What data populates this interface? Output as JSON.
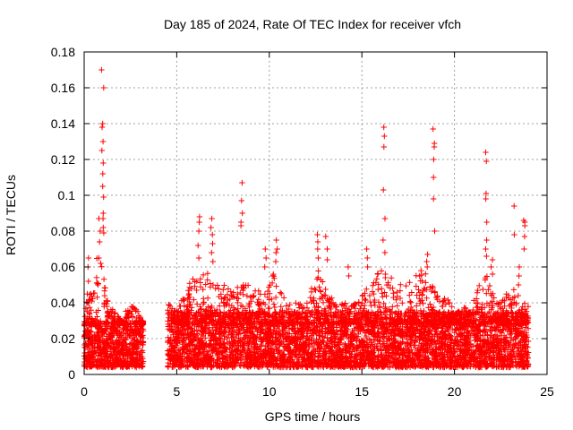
{
  "chart_data": {
    "type": "scatter",
    "title": "Day 185 of 2024, Rate Of TEC Index for receiver vfch",
    "xlabel": "GPS time / hours",
    "ylabel": "ROTI / TECUs",
    "xlim": [
      0,
      25
    ],
    "ylim": [
      0,
      0.18
    ],
    "xticks": [
      0,
      5,
      10,
      15,
      20,
      25
    ],
    "yticks": [
      0,
      0.02,
      0.04,
      0.06,
      0.08,
      0.1,
      0.12,
      0.14,
      0.16,
      0.18
    ],
    "xtick_labels": [
      "0",
      "5",
      "10",
      "15",
      "20",
      "25"
    ],
    "ytick_labels": [
      "0",
      "0.02",
      "0.04",
      "0.06",
      "0.08",
      "0.1",
      "0.12",
      "0.14",
      "0.16",
      "0.18"
    ],
    "grid": true,
    "marker": "+",
    "series_color": "#ff0000",
    "data_gap_hours": [
      3.2,
      4.5
    ],
    "baseline": {
      "segments": [
        {
          "x_start": 0.0,
          "x_end": 3.2,
          "low": 0.004,
          "high": 0.03
        },
        {
          "x_start": 4.5,
          "x_end": 24.0,
          "low": 0.004,
          "high": 0.035
        }
      ]
    },
    "envelope": [
      [
        0.0,
        0.03
      ],
      [
        0.2,
        0.06
      ],
      [
        0.5,
        0.045
      ],
      [
        0.8,
        0.08
      ],
      [
        1.0,
        0.06
      ],
      [
        1.3,
        0.04
      ],
      [
        2.0,
        0.03
      ],
      [
        2.4,
        0.04
      ],
      [
        3.0,
        0.035
      ],
      [
        3.2,
        0.03
      ],
      [
        4.5,
        0.04
      ],
      [
        5.0,
        0.035
      ],
      [
        6.0,
        0.06
      ],
      [
        6.8,
        0.06
      ],
      [
        7.3,
        0.05
      ],
      [
        8.5,
        0.05
      ],
      [
        9.5,
        0.05
      ],
      [
        10.3,
        0.06
      ],
      [
        11.0,
        0.04
      ],
      [
        12.0,
        0.04
      ],
      [
        12.6,
        0.06
      ],
      [
        13.5,
        0.04
      ],
      [
        14.5,
        0.04
      ],
      [
        15.3,
        0.05
      ],
      [
        16.2,
        0.06
      ],
      [
        17.0,
        0.05
      ],
      [
        18.5,
        0.06
      ],
      [
        19.3,
        0.05
      ],
      [
        20.0,
        0.035
      ],
      [
        21.0,
        0.04
      ],
      [
        21.7,
        0.06
      ],
      [
        22.3,
        0.04
      ],
      [
        23.3,
        0.05
      ],
      [
        24.0,
        0.04
      ]
    ],
    "spikes": [
      {
        "x": 1.0,
        "y": [
          0.17,
          0.16,
          0.14,
          0.138,
          0.13,
          0.125,
          0.118,
          0.112,
          0.105,
          0.099,
          0.09,
          0.087,
          0.082,
          0.079
        ]
      },
      {
        "x": 0.85,
        "y": [
          0.087,
          0.08,
          0.074,
          0.065
        ]
      },
      {
        "x": 0.2,
        "y": [
          0.065,
          0.06,
          0.052
        ]
      },
      {
        "x": 6.2,
        "y": [
          0.088,
          0.085,
          0.08,
          0.072,
          0.065
        ]
      },
      {
        "x": 6.9,
        "y": [
          0.087,
          0.082,
          0.078,
          0.073,
          0.068,
          0.063
        ]
      },
      {
        "x": 8.5,
        "y": [
          0.107,
          0.097,
          0.09,
          0.085,
          0.083
        ]
      },
      {
        "x": 9.8,
        "y": [
          0.07,
          0.065,
          0.06
        ]
      },
      {
        "x": 10.4,
        "y": [
          0.075,
          0.07,
          0.068,
          0.063
        ]
      },
      {
        "x": 12.6,
        "y": [
          0.078,
          0.074,
          0.07,
          0.065
        ]
      },
      {
        "x": 13.1,
        "y": [
          0.077,
          0.07,
          0.064
        ]
      },
      {
        "x": 14.3,
        "y": [
          0.06,
          0.055
        ]
      },
      {
        "x": 15.3,
        "y": [
          0.07,
          0.065,
          0.06
        ]
      },
      {
        "x": 16.2,
        "y": [
          0.138,
          0.133,
          0.127,
          0.103,
          0.087,
          0.075,
          0.068
        ]
      },
      {
        "x": 18.5,
        "y": [
          0.067,
          0.063,
          0.06
        ]
      },
      {
        "x": 18.9,
        "y": [
          0.137,
          0.129,
          0.127,
          0.12,
          0.11,
          0.098,
          0.08
        ]
      },
      {
        "x": 21.7,
        "y": [
          0.124,
          0.119,
          0.101,
          0.098,
          0.085,
          0.075,
          0.07,
          0.066
        ]
      },
      {
        "x": 22.0,
        "y": [
          0.064,
          0.06,
          0.056
        ]
      },
      {
        "x": 23.2,
        "y": [
          0.094,
          0.078
        ]
      },
      {
        "x": 23.8,
        "y": [
          0.086,
          0.085,
          0.083,
          0.077,
          0.07
        ]
      },
      {
        "x": 23.5,
        "y": [
          0.06,
          0.055,
          0.05
        ]
      }
    ]
  }
}
